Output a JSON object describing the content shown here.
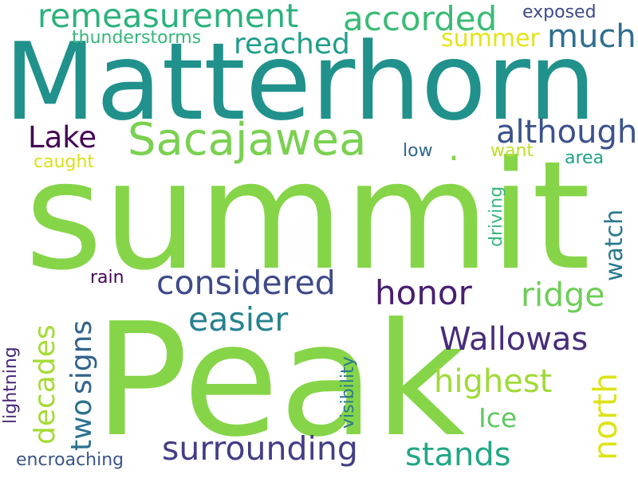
{
  "words": [
    {
      "id": "summit",
      "text": "summit",
      "color": "#86d549"
    },
    {
      "id": "peak",
      "text": "Peak",
      "color": "#86d549"
    },
    {
      "id": "matterhorn",
      "text": "Matterhorn",
      "color": "#21918c"
    },
    {
      "id": "sacajawea",
      "text": "Sacajawea",
      "color": "#7ad151"
    },
    {
      "id": "remeasurement",
      "text": "remeasurement",
      "color": "#2db27d"
    },
    {
      "id": "accorded",
      "text": "accorded",
      "color": "#3bbb75"
    },
    {
      "id": "much",
      "text": "much",
      "color": "#2e6e8e"
    },
    {
      "id": "reached",
      "text": "reached",
      "color": "#1f9e89"
    },
    {
      "id": "summer",
      "text": "summer",
      "color": "#e5e419"
    },
    {
      "id": "exposed",
      "text": "exposed",
      "color": "#3e4a89"
    },
    {
      "id": "thunderstorms",
      "text": "thunderstorms",
      "color": "#35b779"
    },
    {
      "id": "although",
      "text": "although",
      "color": "#3b528b"
    },
    {
      "id": "lake",
      "text": "Lake",
      "color": "#440154"
    },
    {
      "id": "caught",
      "text": "caught",
      "color": "#d8e219"
    },
    {
      "id": "low",
      "text": "low",
      "color": "#31688e"
    },
    {
      "id": "want",
      "text": "want",
      "color": "#bddf26"
    },
    {
      "id": "area",
      "text": "area",
      "color": "#1fa187"
    },
    {
      "id": "driving",
      "text": "driving",
      "color": "#35b779"
    },
    {
      "id": "watch",
      "text": "watch",
      "color": "#2a788e"
    },
    {
      "id": "considered",
      "text": "considered",
      "color": "#3e4a89"
    },
    {
      "id": "honor",
      "text": "honor",
      "color": "#481f70"
    },
    {
      "id": "ridge",
      "text": "ridge",
      "color": "#6ece58"
    },
    {
      "id": "rain",
      "text": "rain",
      "color": "#450457"
    },
    {
      "id": "easier",
      "text": "easier",
      "color": "#26828e"
    },
    {
      "id": "decades",
      "text": "decades",
      "color": "#a5db36"
    },
    {
      "id": "two",
      "text": "two",
      "color": "#2c728e"
    },
    {
      "id": "signs",
      "text": "signs",
      "color": "#33638d"
    },
    {
      "id": "lightning",
      "text": "lightning",
      "color": "#482878"
    },
    {
      "id": "visibility",
      "text": "visibility",
      "color": "#2a788e"
    },
    {
      "id": "wallowas",
      "text": "Wallowas",
      "color": "#472d7b"
    },
    {
      "id": "highest",
      "text": "highest",
      "color": "#a0da39"
    },
    {
      "id": "north",
      "text": "north",
      "color": "#dde318"
    },
    {
      "id": "ice",
      "text": "Ice",
      "color": "#5ec962"
    },
    {
      "id": "surrounding",
      "text": "surrounding",
      "color": "#433e85"
    },
    {
      "id": "stands",
      "text": "stands",
      "color": "#22a785"
    },
    {
      "id": "encroaching",
      "text": "encroaching",
      "color": "#3a548c"
    },
    {
      "id": "dot",
      "text": ".",
      "color": "#86d549"
    }
  ]
}
